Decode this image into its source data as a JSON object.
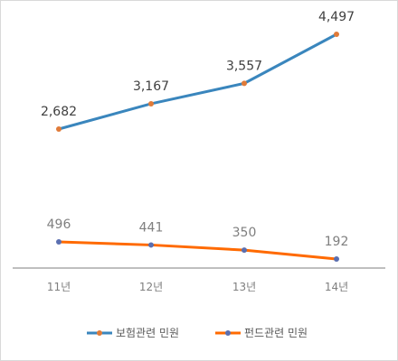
{
  "chart_data": {
    "type": "line",
    "categories": [
      "11년",
      "12년",
      "13년",
      "14년"
    ],
    "series": [
      {
        "name": "보험관련 민원",
        "values": [
          2682,
          3167,
          3557,
          4497
        ],
        "labels": [
          "2,682",
          "3,167",
          "3,557",
          "4,497"
        ],
        "color": "#3a86bd",
        "marker_color": "#e07b39"
      },
      {
        "name": "펀드관련 민원",
        "values": [
          496,
          441,
          350,
          192
        ],
        "labels": [
          "496",
          "441",
          "350",
          "192"
        ],
        "color": "#ff6a00",
        "marker_color": "#5b6fb0"
      }
    ],
    "grid": false,
    "legend_position": "bottom"
  }
}
